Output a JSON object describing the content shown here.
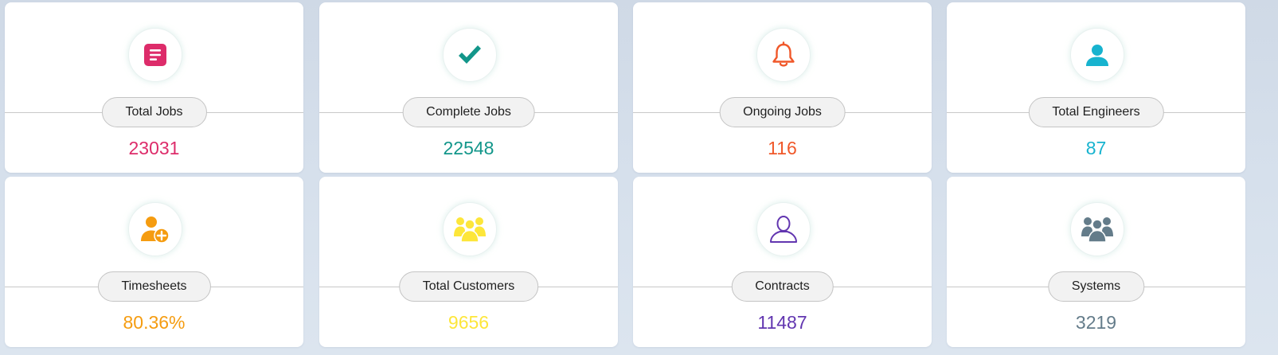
{
  "cards": [
    {
      "label": "Total Jobs",
      "value": "23031",
      "icon": "document-icon",
      "color": "#dd2c6a"
    },
    {
      "label": "Complete Jobs",
      "value": "22548",
      "icon": "checkmark-icon",
      "color": "#12968a"
    },
    {
      "label": "Ongoing Jobs",
      "value": "116",
      "icon": "bell-icon",
      "color": "#f0582a"
    },
    {
      "label": "Total Engineers",
      "value": "87",
      "icon": "user-icon",
      "color": "#17b3cf"
    },
    {
      "label": "Timesheets",
      "value": "80.36%",
      "icon": "user-add-icon",
      "color": "#f59c10"
    },
    {
      "label": "Total Customers",
      "value": "9656",
      "icon": "users-group-icon",
      "color": "#fde63a"
    },
    {
      "label": "Contracts",
      "value": "11487",
      "icon": "user-outline-icon",
      "color": "#6236b0"
    },
    {
      "label": "Systems",
      "value": "3219",
      "icon": "users-group-icon",
      "color": "#647c8a"
    }
  ]
}
